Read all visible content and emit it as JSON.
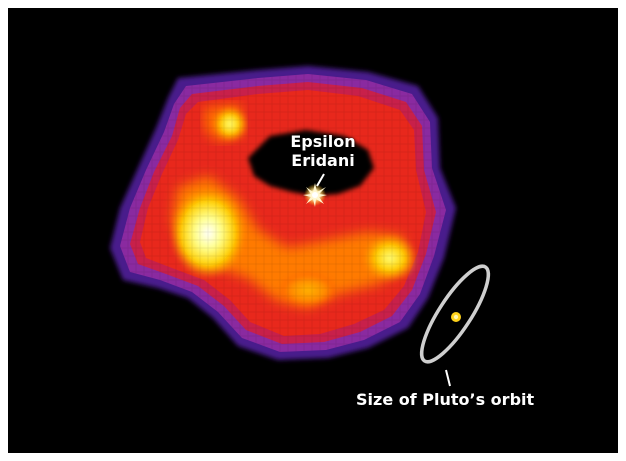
{
  "image": {
    "description_free": true,
    "star_label_line1": "Epsilon",
    "star_label_line2": "Eridani",
    "orbit_label": "Size of Pluto’s orbit"
  },
  "colors": {
    "background": "#000000",
    "border": "#ffffff",
    "orbit_ellipse": "#c8c8c8",
    "pluto_dot": "#ffd21a",
    "star": "#fff3c2"
  },
  "icons": {
    "star": "eight-point-star-icon",
    "planet": "dot-icon"
  }
}
